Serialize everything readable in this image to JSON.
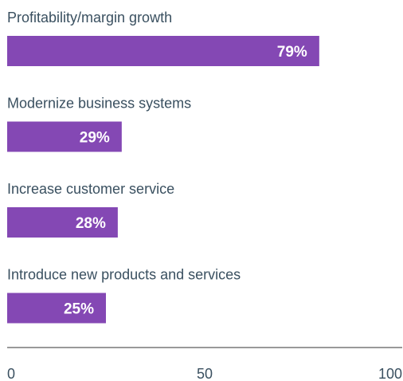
{
  "chart_data": {
    "type": "bar",
    "orientation": "horizontal",
    "categories": [
      "Profitability/margin growth",
      "Modernize business systems",
      "Increase customer service",
      "Introduce new products and services"
    ],
    "values": [
      79,
      29,
      28,
      25
    ],
    "value_labels": [
      "79%",
      "29%",
      "28%",
      "25%"
    ],
    "xlim": [
      0,
      100
    ],
    "xticks": [
      0,
      50,
      100
    ],
    "xtick_labels": [
      "0",
      "50",
      "100"
    ],
    "grid": false,
    "legend": "none",
    "colors": {
      "bar": "#8448b4",
      "label_text": "#3a5060",
      "value_text": "#ffffff",
      "axis": "#333333",
      "tick_text": "#3a5060"
    }
  }
}
